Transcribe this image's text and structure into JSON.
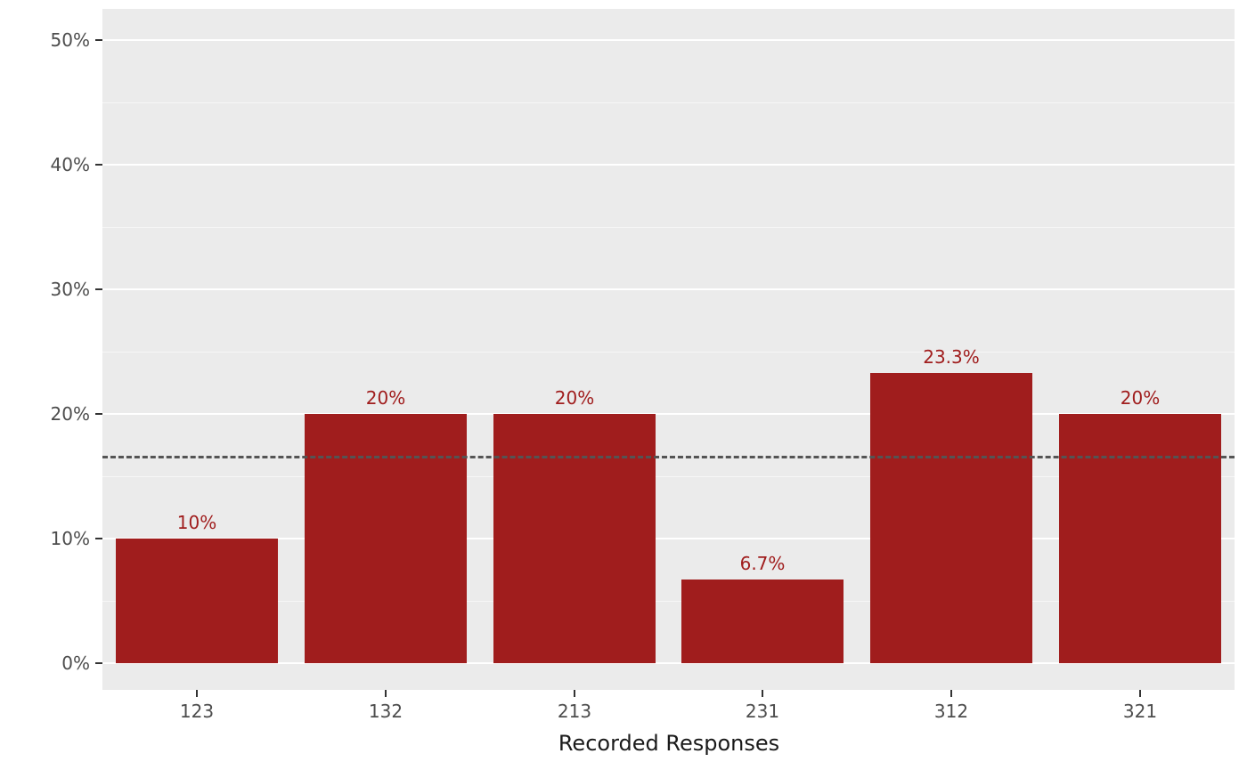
{
  "chart_data": {
    "type": "bar",
    "title": "",
    "xlabel": "Recorded Responses",
    "ylabel": "",
    "categories": [
      "123",
      "132",
      "213",
      "231",
      "312",
      "321"
    ],
    "values": [
      10,
      20,
      20,
      6.7,
      23.3,
      20
    ],
    "bar_labels": [
      "10%",
      "20%",
      "20%",
      "6.7%",
      "23.3%",
      "20%"
    ],
    "y_ticks": [
      0,
      10,
      20,
      30,
      40,
      50
    ],
    "y_tick_labels": [
      "0%",
      "10%",
      "20%",
      "30%",
      "40%",
      "50%"
    ],
    "ylim": [
      0,
      50
    ],
    "grid": "on",
    "legend": "none",
    "reference_line": {
      "value": 16.67,
      "style": "dashed",
      "color": "#545454"
    },
    "colors": {
      "bar": "#A01D1D",
      "bar_label_text": "#A01D1D",
      "panel_background": "#EBEBEB",
      "grid_major": "#FFFFFF",
      "axis_text": "#4D4D4D",
      "axis_title_text": "#1A1A1A",
      "reference_line": "#545454"
    }
  }
}
